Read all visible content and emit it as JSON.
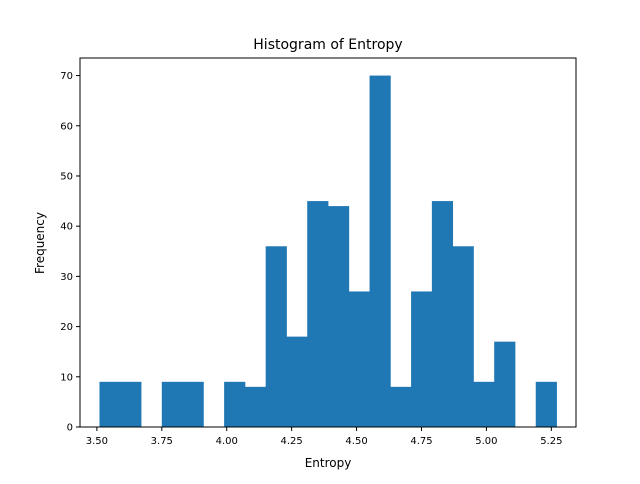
{
  "chart_data": {
    "type": "bar",
    "title": "Histogram of Entropy",
    "xlabel": "Entropy",
    "ylabel": "Frequency",
    "bins": [
      {
        "x0": 3.51,
        "x1": 3.59,
        "count": 9
      },
      {
        "x0": 3.59,
        "x1": 3.67,
        "count": 9
      },
      {
        "x0": 3.67,
        "x1": 3.75,
        "count": 0
      },
      {
        "x0": 3.75,
        "x1": 3.83,
        "count": 9
      },
      {
        "x0": 3.83,
        "x1": 3.91,
        "count": 9
      },
      {
        "x0": 3.91,
        "x1": 3.99,
        "count": 0
      },
      {
        "x0": 3.99,
        "x1": 4.07,
        "count": 9
      },
      {
        "x0": 4.07,
        "x1": 4.15,
        "count": 8
      },
      {
        "x0": 4.15,
        "x1": 4.23,
        "count": 36
      },
      {
        "x0": 4.23,
        "x1": 4.31,
        "count": 18
      },
      {
        "x0": 4.31,
        "x1": 4.39,
        "count": 45
      },
      {
        "x0": 4.39,
        "x1": 4.47,
        "count": 44
      },
      {
        "x0": 4.47,
        "x1": 4.55,
        "count": 27
      },
      {
        "x0": 4.55,
        "x1": 4.63,
        "count": 70
      },
      {
        "x0": 4.63,
        "x1": 4.71,
        "count": 8
      },
      {
        "x0": 4.71,
        "x1": 4.79,
        "count": 27
      },
      {
        "x0": 4.79,
        "x1": 4.87,
        "count": 45
      },
      {
        "x0": 4.87,
        "x1": 4.95,
        "count": 36
      },
      {
        "x0": 4.95,
        "x1": 5.03,
        "count": 9
      },
      {
        "x0": 5.03,
        "x1": 5.11,
        "count": 17
      },
      {
        "x0": 5.11,
        "x1": 5.19,
        "count": 0
      },
      {
        "x0": 5.19,
        "x1": 5.27,
        "count": 9
      }
    ],
    "xlim": [
      3.435,
      5.345
    ],
    "ylim": [
      0,
      73.5
    ],
    "xticks": [
      3.5,
      3.75,
      4.0,
      4.25,
      4.5,
      4.75,
      5.0,
      5.25
    ],
    "xtick_labels": [
      "3.50",
      "3.75",
      "4.00",
      "4.25",
      "4.50",
      "4.75",
      "5.00",
      "5.25"
    ],
    "yticks": [
      0,
      10,
      20,
      30,
      40,
      50,
      60,
      70
    ],
    "ytick_labels": [
      "0",
      "10",
      "20",
      "30",
      "40",
      "50",
      "60",
      "70"
    ],
    "bar_color": "#1f77b4",
    "grid": false,
    "legend": "none"
  }
}
